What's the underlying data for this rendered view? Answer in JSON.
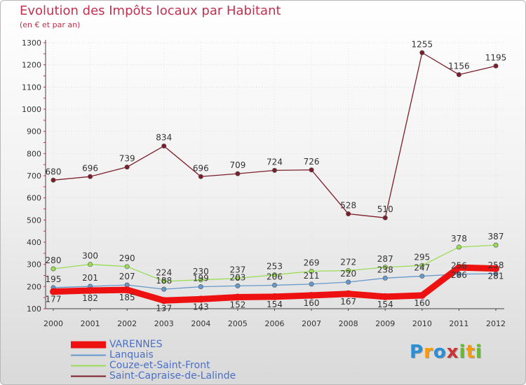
{
  "chart_data": {
    "type": "line",
    "title": "Evolution des Impôts locaux par Habitant",
    "subtitle": "(en € et par an)",
    "xlabel": "",
    "ylabel": "",
    "ylim": [
      100,
      1300
    ],
    "yticks": [
      100,
      200,
      300,
      400,
      500,
      600,
      700,
      800,
      900,
      1000,
      1100,
      1200,
      1300
    ],
    "grid": true,
    "x": [
      "2000",
      "2001",
      "2002",
      "2003",
      "2004",
      "2005",
      "2006",
      "2007",
      "2008",
      "2009",
      "2010",
      "2011",
      "2012"
    ],
    "series": [
      {
        "name": "Saint-Capraise-de-Lalinde",
        "color": "#7b1d2a",
        "values": [
          680,
          696,
          739,
          834,
          696,
          709,
          724,
          726,
          528,
          510,
          1255,
          1156,
          1195
        ]
      },
      {
        "name": "Couze-et-Saint-Front",
        "color": "#99dd55",
        "values": [
          280,
          300,
          290,
          224,
          230,
          237,
          253,
          269,
          272,
          287,
          295,
          378,
          387
        ]
      },
      {
        "name": "Lanquais",
        "color": "#6699cc",
        "values": [
          195,
          201,
          207,
          188,
          199,
          203,
          206,
          211,
          220,
          238,
          247,
          256,
          258
        ]
      },
      {
        "name": "VARENNES",
        "color": "#ee1111",
        "values": [
          177,
          182,
          185,
          137,
          143,
          152,
          154,
          160,
          167,
          154,
          160,
          286,
          281
        ]
      }
    ]
  },
  "legend": [
    {
      "label": "VARENNES",
      "color": "#ee1111",
      "thickness": "thick"
    },
    {
      "label": "Lanquais",
      "color": "#6699cc",
      "thickness": "thin"
    },
    {
      "label": "Couze-et-Saint-Front",
      "color": "#99dd55",
      "thickness": "thin"
    },
    {
      "label": "Saint-Capraise-de-Lalinde",
      "color": "#7b1d2a",
      "thickness": "thin"
    }
  ],
  "logo": {
    "letters": [
      "P",
      "r",
      "o",
      "x",
      "i",
      "t",
      "i"
    ],
    "colors": [
      "#2a8fd6",
      "#ff9900",
      "#2a8fd6",
      "#cc3333",
      "#66bb33",
      "#ff9900",
      "#66bb33"
    ]
  }
}
